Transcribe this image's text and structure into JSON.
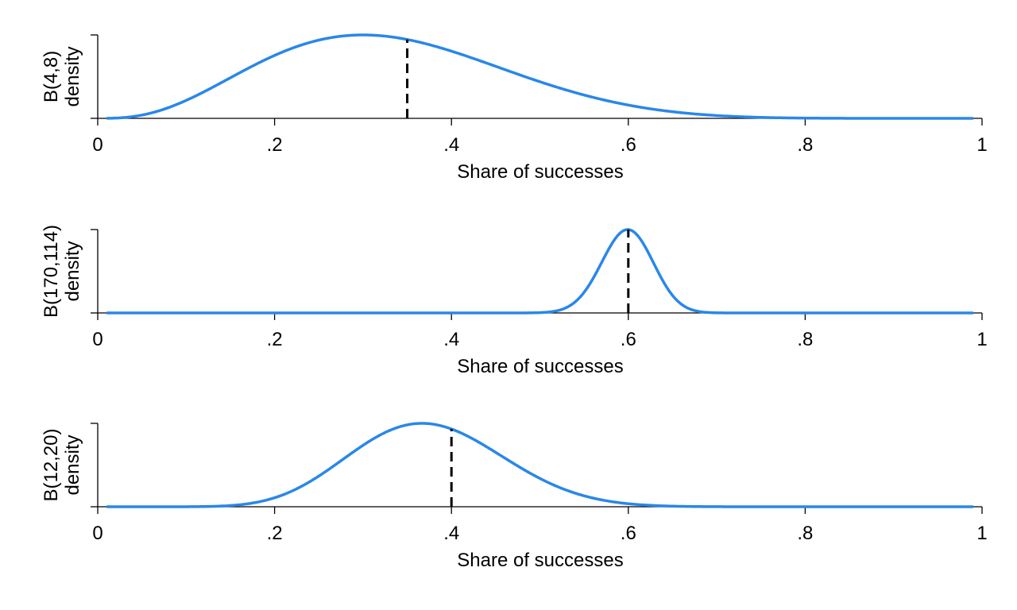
{
  "chart_data": [
    {
      "type": "line",
      "alpha": 4,
      "beta": 8,
      "ylabel_line1": "B(4,8)",
      "ylabel_line2": "density",
      "xlabel": "Share of successes",
      "xlim": [
        0,
        1
      ],
      "x_ticks": [
        0,
        0.2,
        0.4,
        0.6,
        0.8,
        1
      ],
      "x_tick_labels": [
        "0",
        ".2",
        ".4",
        ".6",
        ".8",
        "1"
      ],
      "curve_range": [
        0.01,
        0.99
      ],
      "mode": 0.3,
      "reference_line_x": 0.35,
      "grid": false,
      "series_color": "#2a87e8"
    },
    {
      "type": "line",
      "alpha": 170,
      "beta": 114,
      "ylabel_line1": "B(170,114)",
      "ylabel_line2": "density",
      "xlabel": "Share of successes",
      "xlim": [
        0,
        1
      ],
      "x_ticks": [
        0,
        0.2,
        0.4,
        0.6,
        0.8,
        1
      ],
      "x_tick_labels": [
        "0",
        ".2",
        ".4",
        ".6",
        ".8",
        "1"
      ],
      "curve_range": [
        0.01,
        0.99
      ],
      "mode": 0.6,
      "reference_line_x": 0.6,
      "grid": false,
      "series_color": "#2a87e8"
    },
    {
      "type": "line",
      "alpha": 12,
      "beta": 20,
      "ylabel_line1": "B(12,20)",
      "ylabel_line2": "density",
      "xlabel": "Share of successes",
      "xlim": [
        0,
        1
      ],
      "x_ticks": [
        0,
        0.2,
        0.4,
        0.6,
        0.8,
        1
      ],
      "x_tick_labels": [
        "0",
        ".2",
        ".4",
        ".6",
        ".8",
        "1"
      ],
      "curve_range": [
        0.01,
        0.99
      ],
      "mode": 0.3667,
      "reference_line_x": 0.4,
      "grid": false,
      "series_color": "#2a87e8"
    }
  ]
}
